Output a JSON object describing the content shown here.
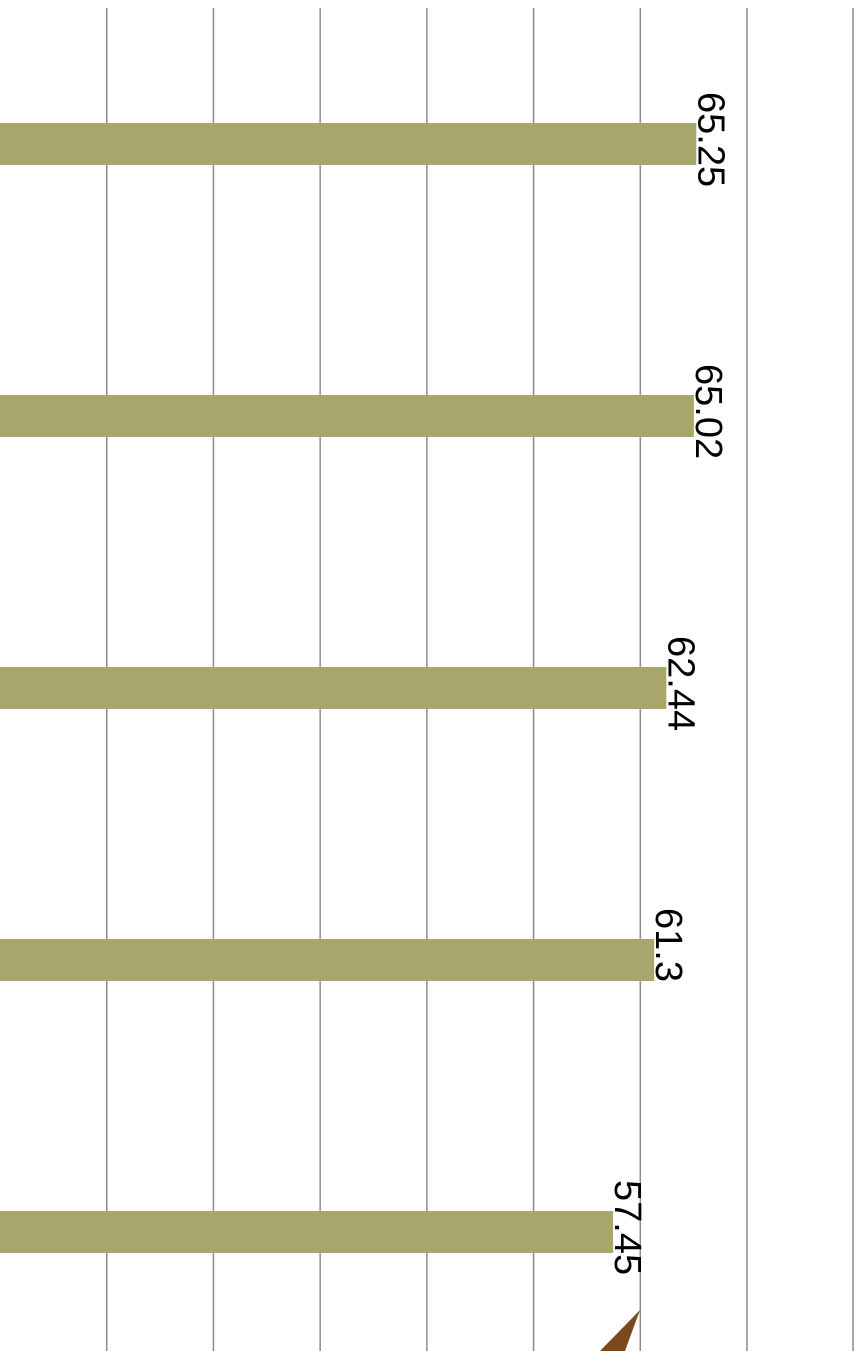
{
  "chart_data": {
    "type": "bar",
    "orientation": "horizontal",
    "rotation": "rotated 90 degrees clockwise",
    "series": [
      {
        "values": [
          65.25,
          65.02,
          62.44,
          61.3,
          57.45
        ]
      }
    ],
    "data_labels": [
      "65.25",
      "65.02",
      "62.44",
      "61.3",
      "57.45"
    ],
    "xlim": [
      0,
      70
    ],
    "grid": true,
    "colors": {
      "bar": "#a8a66a",
      "grid": "#8c8c8c",
      "marker": "#7a4a1c"
    }
  }
}
